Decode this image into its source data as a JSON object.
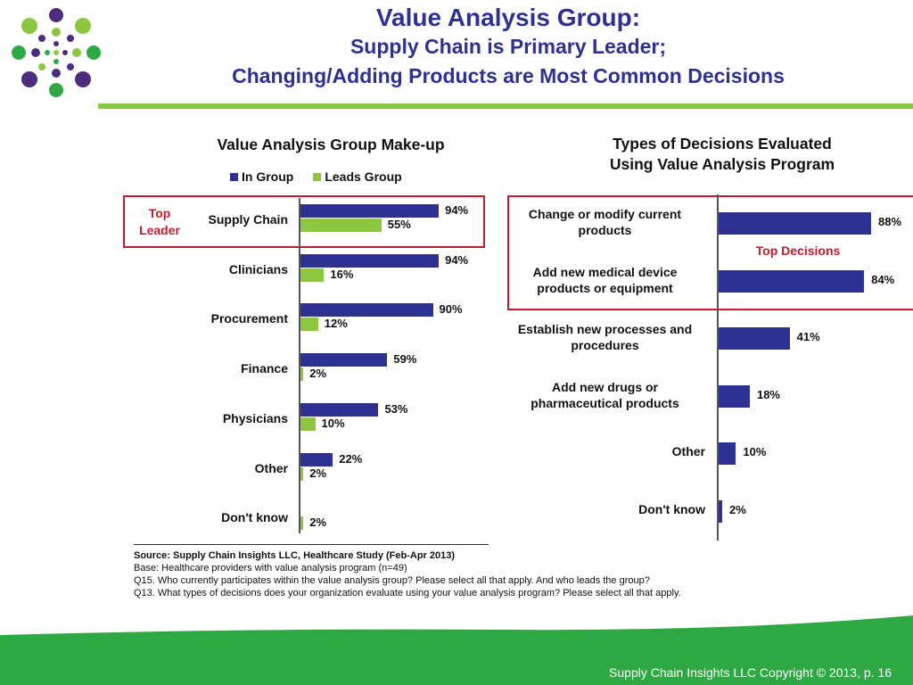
{
  "title": {
    "main": "Value Analysis Group:",
    "line2": "Supply Chain is Primary Leader;",
    "line3": "Changing/Adding Products are Most Common Decisions"
  },
  "colors": {
    "blue": "#2e3192",
    "green": "#8dc63f",
    "highlight": "#be1e2d",
    "footer": "#2ea843"
  },
  "logo": {
    "icon": "dot-cluster-logo"
  },
  "chart_data": [
    {
      "type": "bar",
      "orientation": "horizontal",
      "title": "Value Analysis Group Make-up",
      "categories": [
        "Supply Chain",
        "Clinicians",
        "Procurement",
        "Finance",
        "Physicians",
        "Other",
        "Don't know"
      ],
      "series": [
        {
          "name": "In Group",
          "values": [
            94,
            94,
            90,
            59,
            53,
            22,
            0
          ],
          "labels": [
            "94%",
            "94%",
            "90%",
            "59%",
            "53%",
            "22%",
            ""
          ]
        },
        {
          "name": "Leads Group",
          "values": [
            55,
            16,
            12,
            2,
            10,
            2,
            2
          ],
          "labels": [
            "55%",
            "16%",
            "12%",
            "2%",
            "10%",
            "2%",
            "2%"
          ]
        }
      ],
      "xlim": [
        0,
        100
      ],
      "legend": "top",
      "annotation": {
        "text_line1": "Top",
        "text_line2": "Leader"
      }
    },
    {
      "type": "bar",
      "orientation": "horizontal",
      "title_line1": "Types of Decisions Evaluated",
      "title_line2": "Using Value Analysis Program",
      "categories": [
        [
          "Change or modify current",
          "products"
        ],
        [
          "Add new medical device",
          "products or equipment"
        ],
        [
          "Establish new processes and",
          "procedures"
        ],
        [
          "Add new drugs or",
          "pharmaceutical products"
        ],
        [
          "Other"
        ],
        [
          "Don't know"
        ]
      ],
      "values": [
        88,
        84,
        41,
        18,
        10,
        2
      ],
      "labels": [
        "88%",
        "84%",
        "41%",
        "18%",
        "10%",
        "2%"
      ],
      "xlim": [
        0,
        100
      ],
      "annotation": "Top Decisions"
    }
  ],
  "notes": {
    "source": "Source:  Supply Chain Insights LLC, Healthcare Study (Feb-Apr 2013)",
    "base": "Base:  Healthcare providers with value analysis program (n=49)",
    "q15": "Q15. Who currently participates within the value analysis group?  Please select all that apply.  And who leads the group?",
    "q13": "Q13. What types of decisions does your organization evaluate using your value analysis program? Please select all that apply."
  },
  "footer": {
    "text": "Supply Chain Insights LLC Copyright © 2013, p. 16"
  }
}
